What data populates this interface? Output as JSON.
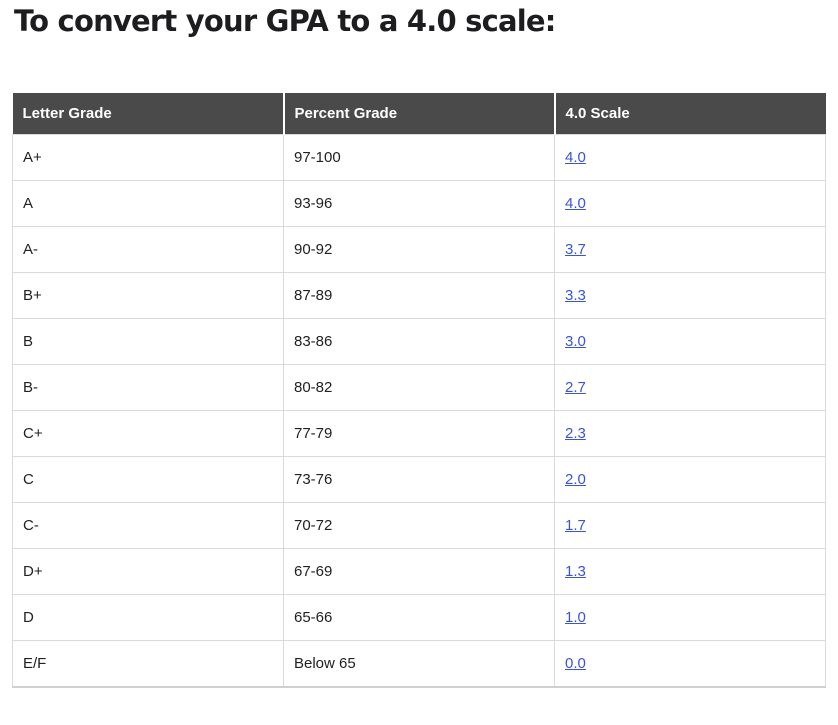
{
  "heading": "To convert your GPA to a 4.0 scale:",
  "table": {
    "headers": [
      "Letter Grade",
      "Percent Grade",
      "4.0 Scale"
    ],
    "rows": [
      {
        "letter": "A+",
        "percent": "97-100",
        "scale": "4.0"
      },
      {
        "letter": "A",
        "percent": "93-96",
        "scale": "4.0"
      },
      {
        "letter": "A-",
        "percent": "90-92",
        "scale": "3.7"
      },
      {
        "letter": "B+",
        "percent": "87-89",
        "scale": "3.3"
      },
      {
        "letter": "B",
        "percent": "83-86",
        "scale": "3.0"
      },
      {
        "letter": "B-",
        "percent": "80-82",
        "scale": "2.7"
      },
      {
        "letter": "C+",
        "percent": "77-79",
        "scale": "2.3"
      },
      {
        "letter": "C",
        "percent": "73-76",
        "scale": "2.0"
      },
      {
        "letter": "C-",
        "percent": "70-72",
        "scale": "1.7"
      },
      {
        "letter": "D+",
        "percent": "67-69",
        "scale": "1.3"
      },
      {
        "letter": "D",
        "percent": "65-66",
        "scale": "1.0"
      },
      {
        "letter": "E/F",
        "percent": "Below 65",
        "scale": "0.0"
      }
    ]
  },
  "colors": {
    "header_background": "#4a4a4a",
    "header_text": "#ffffff",
    "body_text": "#202124",
    "link": "#3b55cf",
    "border": "#dadada",
    "heading_text": "#1d1d1f"
  }
}
